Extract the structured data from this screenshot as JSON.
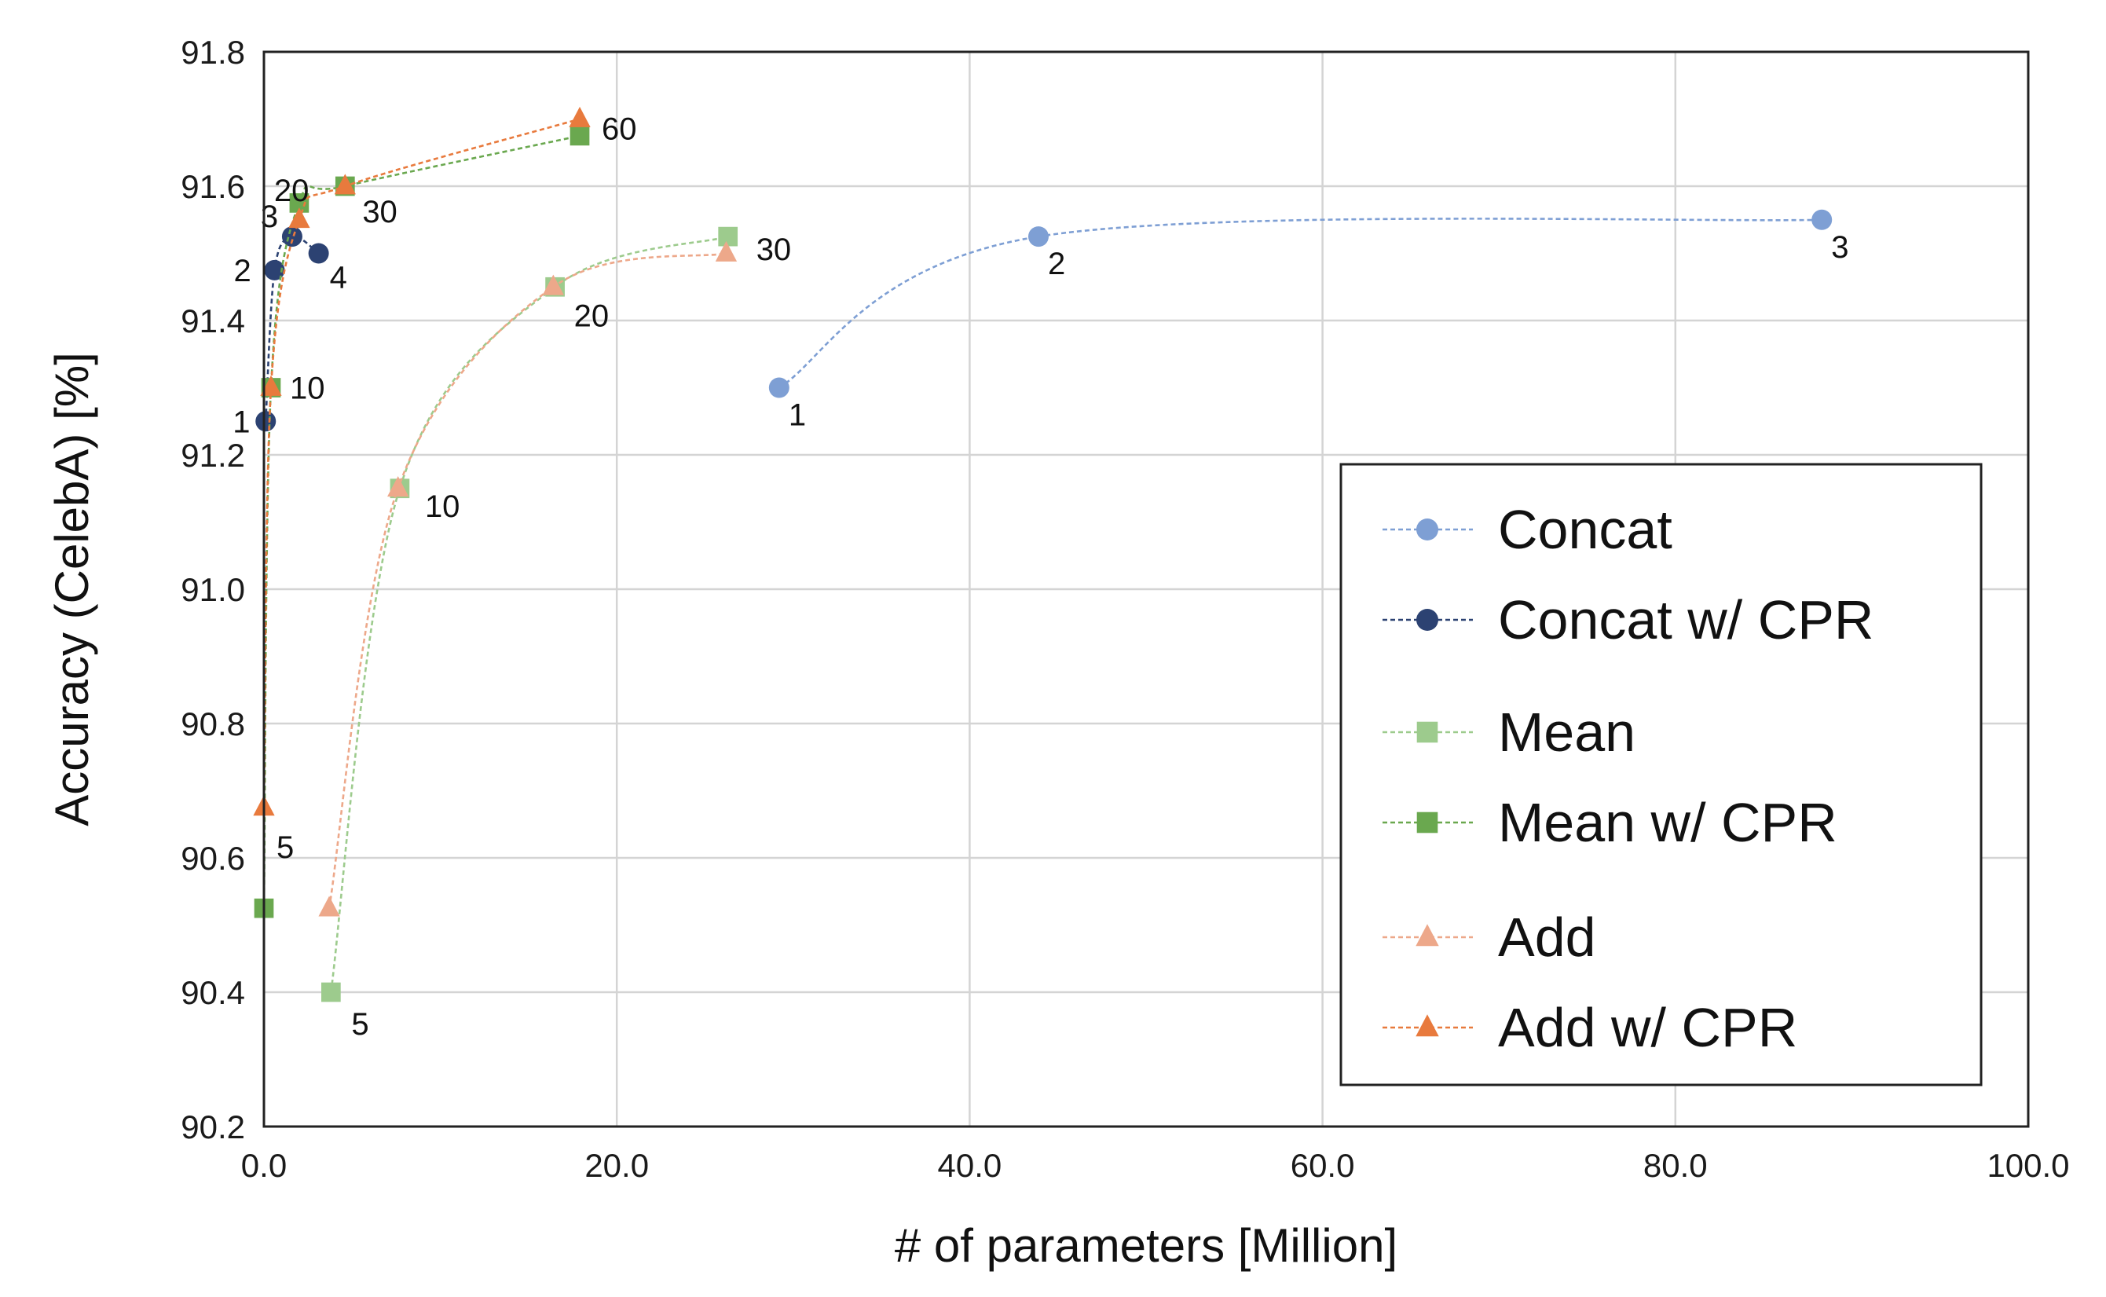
{
  "chart_data": {
    "type": "line",
    "title": "",
    "xlabel": "# of parameters [Million]",
    "ylabel": "Accuracy (CelebA) [%]",
    "xlim": [
      0,
      100
    ],
    "ylim": [
      90.2,
      91.8
    ],
    "x_ticks": [
      "0.0",
      "20.0",
      "40.0",
      "60.0",
      "80.0",
      "100.0"
    ],
    "y_ticks": [
      "90.2",
      "90.4",
      "90.6",
      "90.8",
      "91.0",
      "91.2",
      "91.4",
      "91.6",
      "91.8"
    ],
    "grid": true,
    "legend_position": "lower-right",
    "series": [
      {
        "name": "Concat",
        "color": "#7e9fd4",
        "marker": "circle",
        "points": [
          {
            "x": 29.2,
            "y": 91.3,
            "label": "1"
          },
          {
            "x": 43.9,
            "y": 91.525,
            "label": "2"
          },
          {
            "x": 88.3,
            "y": 91.55,
            "label": "3"
          }
        ]
      },
      {
        "name": "Concat w/ CPR",
        "color": "#2c4272",
        "marker": "circle",
        "points": [
          {
            "x": 0.1,
            "y": 91.25,
            "label": "1"
          },
          {
            "x": 0.6,
            "y": 91.475,
            "label": "2"
          },
          {
            "x": 1.6,
            "y": 91.525,
            "label": "3"
          },
          {
            "x": 3.1,
            "y": 91.5,
            "label": "4"
          }
        ]
      },
      {
        "name": "Mean",
        "color": "#9dcb8d",
        "marker": "square",
        "points": [
          {
            "x": 3.8,
            "y": 90.4,
            "label": "5"
          },
          {
            "x": 7.7,
            "y": 91.15,
            "label": "10"
          },
          {
            "x": 16.5,
            "y": 91.45,
            "label": "20"
          },
          {
            "x": 26.3,
            "y": 91.525,
            "label": "30"
          }
        ]
      },
      {
        "name": "Mean w/ CPR",
        "color": "#6aa84f",
        "marker": "square",
        "points": [
          {
            "x": 0.0,
            "y": 90.525,
            "label": ""
          },
          {
            "x": 0.4,
            "y": 91.3,
            "label": ""
          },
          {
            "x": 2.0,
            "y": 91.575,
            "label": ""
          },
          {
            "x": 4.6,
            "y": 91.6,
            "label": ""
          },
          {
            "x": 17.9,
            "y": 91.675,
            "label": ""
          }
        ]
      },
      {
        "name": "Add",
        "color": "#eda88a",
        "marker": "triangle",
        "points": [
          {
            "x": 3.7,
            "y": 90.525,
            "label": ""
          },
          {
            "x": 7.6,
            "y": 91.15,
            "label": ""
          },
          {
            "x": 16.4,
            "y": 91.45,
            "label": ""
          },
          {
            "x": 26.2,
            "y": 91.5,
            "label": ""
          }
        ]
      },
      {
        "name": "Add w/ CPR",
        "color": "#e87a3d",
        "marker": "triangle",
        "points": [
          {
            "x": 0.0,
            "y": 90.675,
            "label": "5"
          },
          {
            "x": 0.4,
            "y": 91.3,
            "label": "10"
          },
          {
            "x": 2.0,
            "y": 91.55,
            "label": "20"
          },
          {
            "x": 4.6,
            "y": 91.6,
            "label": "30"
          },
          {
            "x": 17.9,
            "y": 91.7,
            "label": "60"
          }
        ]
      }
    ]
  }
}
